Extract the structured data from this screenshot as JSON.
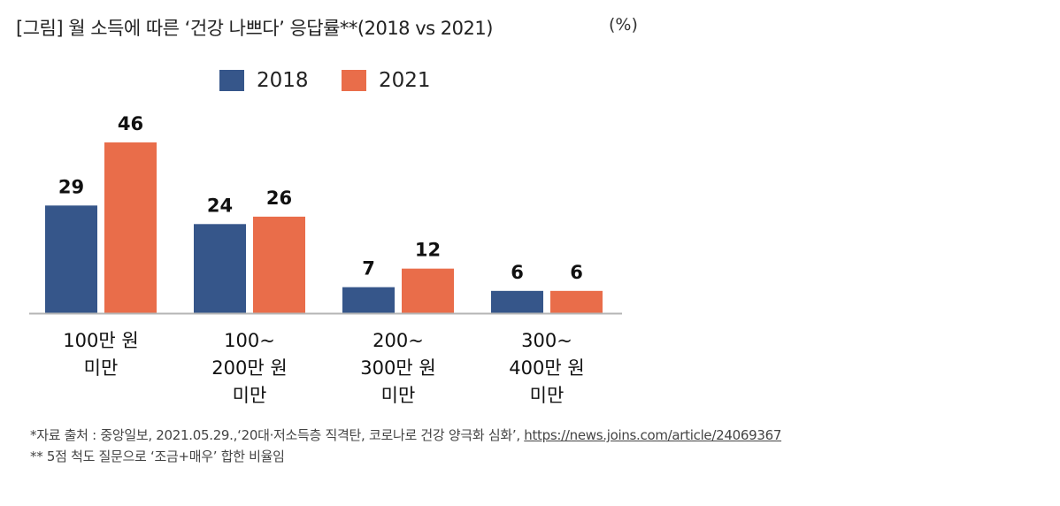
{
  "header": {
    "title": "[그림] 월 소득에 따른 ‘건강 나쁘다’ 응답률**(2018 vs 2021)",
    "unit": "(%)"
  },
  "chart_data": {
    "type": "bar",
    "title": "[그림] 월 소득에 따른 ‘건강 나쁘다’ 응답률**(2018 vs 2021)",
    "unit": "(%)",
    "xlabel": "",
    "ylabel": "",
    "categories": [
      [
        "100만 원",
        "미만"
      ],
      [
        "100~",
        "200만 원",
        "미만"
      ],
      [
        "200~",
        "300만 원",
        "미만"
      ],
      [
        "300~",
        "400만 원",
        "미만"
      ]
    ],
    "series": [
      {
        "name": "2018",
        "color": "#36568A",
        "values": [
          29,
          24,
          7,
          6
        ]
      },
      {
        "name": "2021",
        "color": "#E96D4A",
        "values": [
          46,
          26,
          12,
          6
        ]
      }
    ],
    "ylim": [
      0,
      46
    ],
    "grid": false,
    "legend_position": "top-center",
    "data_labels": true
  },
  "footer": {
    "source_prefix": "*자료 출처 : 중앙일보, 2021.05.29.,‘20대·저소득층 직격탄, 코로나로 건강 양극화 심화’, ",
    "source_link": "https://news.joins.com/article/24069367",
    "note": "** 5점 척도 질문으로 ‘조금+매우’ 합한 비율임"
  }
}
